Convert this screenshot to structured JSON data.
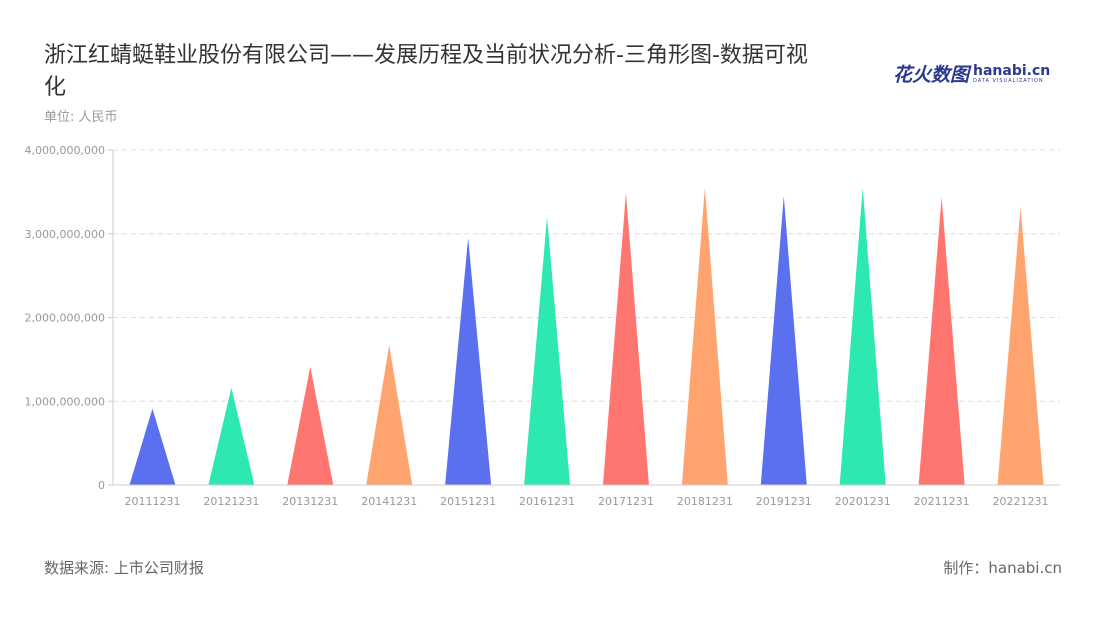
{
  "title": "浙江红蜻蜓鞋业股份有限公司——发展历程及当前状况分析-三角形图-数据可视化",
  "unit": "单位: 人民币",
  "logo": {
    "cn": "花火数图",
    "en": "hanabi.cn",
    "sub": "DATA VISUALIZATION"
  },
  "footer": {
    "source": "数据来源: 上市公司财报",
    "made_by": "制作：hanabi.cn"
  },
  "chart_data": {
    "type": "bar",
    "shape": "triangle",
    "title": "",
    "xlabel": "",
    "ylabel": "",
    "categories": [
      "20111231",
      "20121231",
      "20131231",
      "20141231",
      "20151231",
      "20161231",
      "20171231",
      "20181231",
      "20191231",
      "20201231",
      "20211231",
      "20221231"
    ],
    "values": [
      910000000,
      1160000000,
      1410000000,
      1670000000,
      2950000000,
      3200000000,
      3490000000,
      3550000000,
      3450000000,
      3550000000,
      3440000000,
      3320000000
    ],
    "ylim": [
      0,
      4000000000
    ],
    "yticks": [
      0,
      1000000000,
      2000000000,
      3000000000,
      4000000000
    ],
    "ytick_labels": [
      "0",
      "1,000,000,000",
      "2,000,000,000",
      "3,000,000,000",
      "4,000,000,000"
    ],
    "grid": true,
    "colors": [
      "#5b70ee",
      "#2de8b0",
      "#ff7670",
      "#ffa46f"
    ]
  }
}
